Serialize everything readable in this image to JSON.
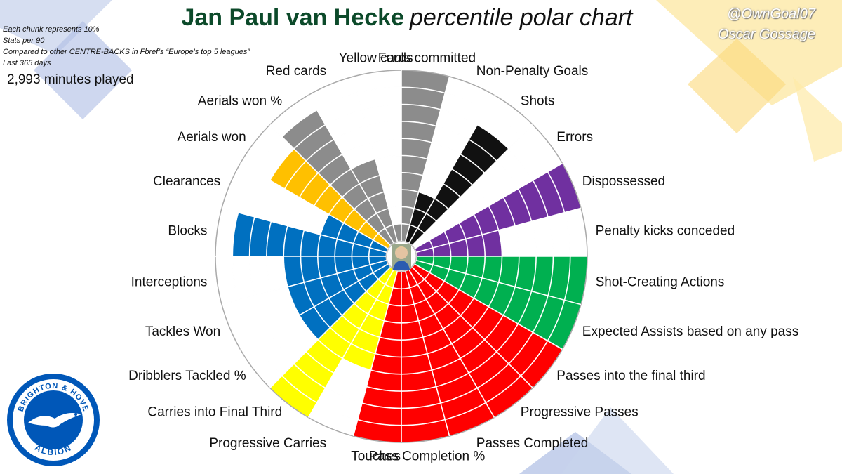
{
  "header": {
    "player_name": "Jan Paul van Hecke",
    "subtitle": "percentile polar chart"
  },
  "notes": [
    "Each chunk represents 10%",
    "Stats per 90",
    "Compared to other CENTRE-BACKS in Fbref’s “Europe's top 5 leagues”",
    "Last 365 days"
  ],
  "minutes_played": "2,993 minutes played",
  "credit": {
    "handle": "@OwnGoal07",
    "author": "Oscar Gossage"
  },
  "badge": {
    "top_text": "BRIGHTON & HOVE",
    "bottom_text": "ALBION",
    "icon": "seagull-icon"
  },
  "colors": {
    "discipline": "#8c8c8c",
    "attack": "#111111",
    "possession_loss": "#7030a0",
    "creation": "#00b050",
    "passing": "#ff0000",
    "carrying": "#ffff00",
    "defending": "#0070c0",
    "aerial": "#ffc000"
  },
  "chart_data": {
    "type": "polar",
    "max": 100,
    "ring_step": 10,
    "series": [
      {
        "name": "Fouls committed",
        "value": 100,
        "group": "discipline"
      },
      {
        "name": "Non-Penalty Goals",
        "value": 30,
        "group": "attack"
      },
      {
        "name": "Shots",
        "value": 80,
        "group": "attack"
      },
      {
        "name": "Errors",
        "value": 0,
        "group": "attack"
      },
      {
        "name": "Dispossessed",
        "value": 100,
        "group": "possession_loss"
      },
      {
        "name": "Penalty kicks conceded",
        "value": 50,
        "group": "possession_loss"
      },
      {
        "name": "Shot-Creating Actions",
        "value": 100,
        "group": "creation"
      },
      {
        "name": "Expected Assists based on any pass",
        "value": 100,
        "group": "creation"
      },
      {
        "name": "Passes into the final third",
        "value": 100,
        "group": "passing"
      },
      {
        "name": "Progressive Passes",
        "value": 100,
        "group": "passing"
      },
      {
        "name": "Passes Completed",
        "value": 100,
        "group": "passing"
      },
      {
        "name": "Pass Completion %",
        "value": 100,
        "group": "passing"
      },
      {
        "name": "Touches",
        "value": 100,
        "group": "passing"
      },
      {
        "name": "Progressive Carries",
        "value": 60,
        "group": "carrying"
      },
      {
        "name": "Carries into Final Third",
        "value": 100,
        "group": "carrying"
      },
      {
        "name": "Dribblers Tackled %",
        "value": 60,
        "group": "defending"
      },
      {
        "name": "Tackles Won",
        "value": 60,
        "group": "defending"
      },
      {
        "name": "Interceptions",
        "value": 60,
        "group": "defending"
      },
      {
        "name": "Blocks",
        "value": 90,
        "group": "defending"
      },
      {
        "name": "Clearances",
        "value": 40,
        "group": "defending"
      },
      {
        "name": "Aerials won",
        "value": 80,
        "group": "aerial"
      },
      {
        "name": "Aerials won %",
        "value": 90,
        "group": "discipline"
      },
      {
        "name": "Red cards",
        "value": 50,
        "group": "discipline"
      },
      {
        "name": "Yellow cards",
        "value": 10,
        "group": "discipline"
      }
    ]
  }
}
